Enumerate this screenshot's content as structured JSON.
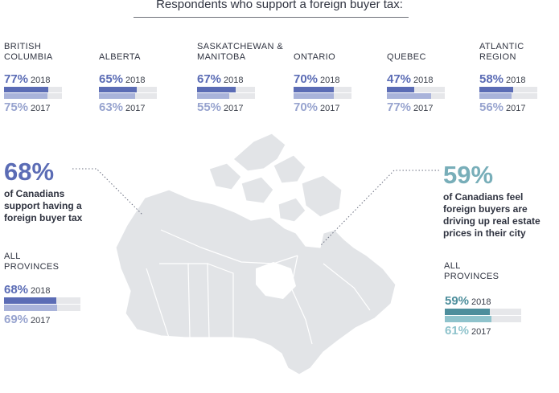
{
  "title": "Respondents who support a foreign buyer tax:",
  "colors": {
    "bar_2018": "#5b6cb5",
    "bar_2017": "#a9b3da",
    "bar_track": "#e6e7ea",
    "teal_2018": "#4d8e9c",
    "teal_2017": "#8fc3cc",
    "map": "#e2e4e7"
  },
  "year_2018": "2018",
  "year_2017": "2017",
  "chart_data": {
    "type": "bar",
    "title": "Respondents who support a foreign buyer tax:",
    "categories": [
      "BRITISH COLUMBIA",
      "ALBERTA",
      "SASKATCHEWAN & MANITOBA",
      "ONTARIO",
      "QUEBEC",
      "ATLANTIC REGION"
    ],
    "series": [
      {
        "name": "2018",
        "values": [
          77,
          65,
          67,
          70,
          47,
          58
        ]
      },
      {
        "name": "2017",
        "values": [
          75,
          63,
          55,
          70,
          77,
          56
        ]
      }
    ],
    "ylim": [
      0,
      100
    ]
  },
  "regions": [
    {
      "name": "BRITISH COLUMBIA",
      "v2018": "77%",
      "v2017": "75%",
      "f2018": 77,
      "f2017": 75
    },
    {
      "name": "ALBERTA",
      "v2018": "65%",
      "v2017": "63%",
      "f2018": 65,
      "f2017": 63
    },
    {
      "name": "SASKATCHEWAN & MANITOBA",
      "v2018": "67%",
      "v2017": "55%",
      "f2018": 67,
      "f2017": 55
    },
    {
      "name": "ONTARIO",
      "v2018": "70%",
      "v2017": "70%",
      "f2018": 70,
      "f2017": 70
    },
    {
      "name": "QUEBEC",
      "v2018": "47%",
      "v2017": "77%",
      "f2018": 47,
      "f2017": 77
    },
    {
      "name": "ATLANTIC REGION",
      "v2018": "58%",
      "v2017": "56%",
      "f2018": 58,
      "f2017": 56
    }
  ],
  "left_stat": {
    "big": "68%",
    "desc_lines": [
      "of Canadians",
      "support having a",
      "foreign buyer tax"
    ],
    "all_lines": [
      "ALL",
      "PROVINCES"
    ],
    "v2018": "68%",
    "v2017": "69%",
    "f2018": 68,
    "f2017": 69
  },
  "right_stat": {
    "big": "59%",
    "desc_lines": [
      "of Canadians feel",
      "foreign buyers are",
      "driving up real estate",
      "prices in their city"
    ],
    "all_lines": [
      "ALL",
      "PROVINCES"
    ],
    "v2018": "59%",
    "v2017": "61%",
    "f2018": 59,
    "f2017": 61
  }
}
